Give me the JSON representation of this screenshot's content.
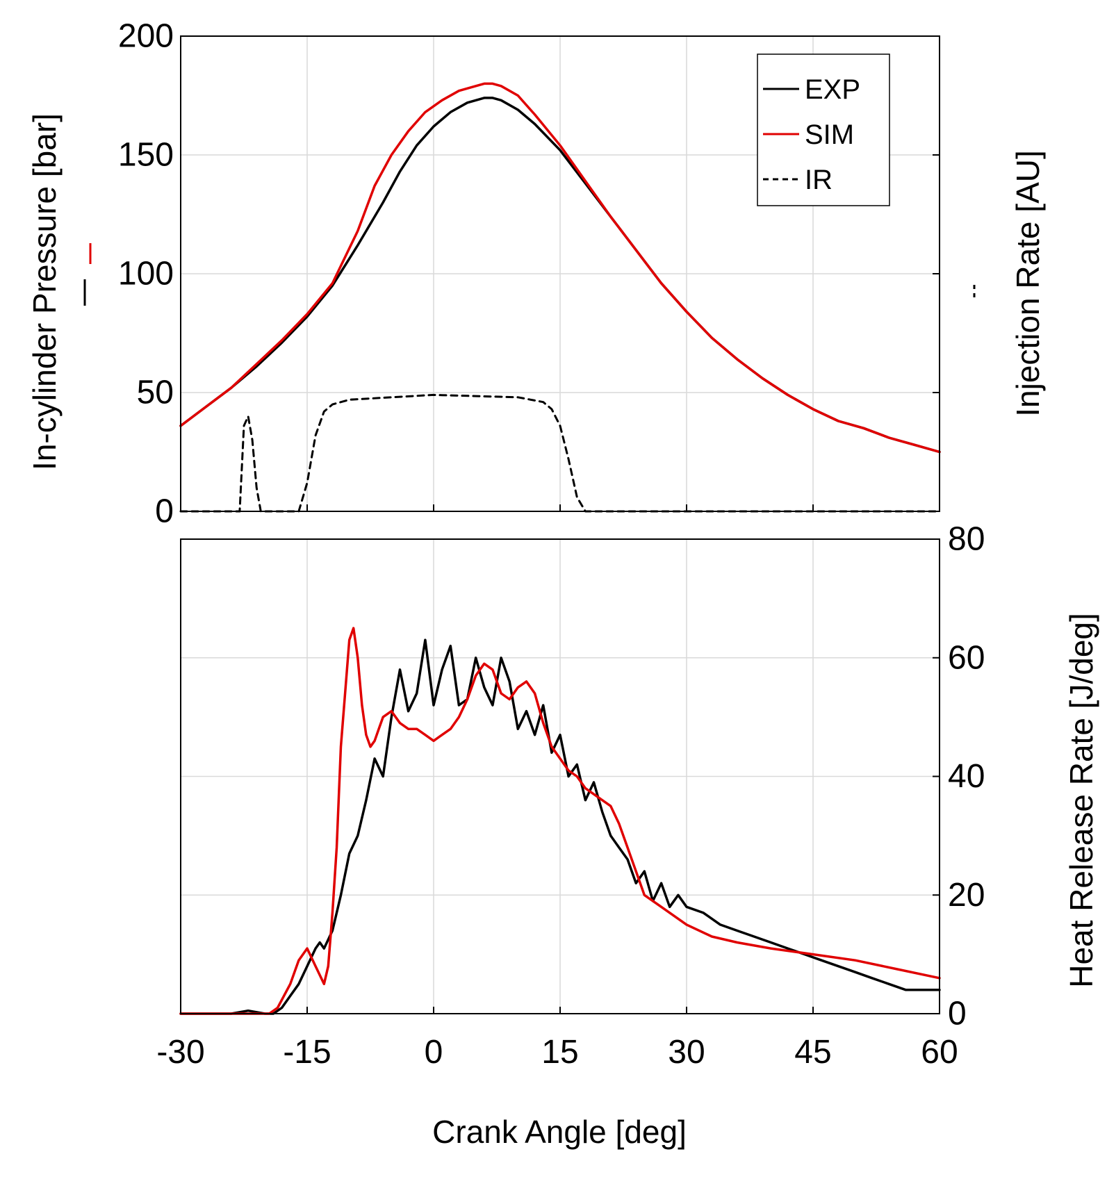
{
  "chart_data": [
    {
      "type": "line",
      "panel": "top",
      "xlabel": "",
      "ylabel_left": "In-cylinder Pressure [bar]",
      "ylabel_right": "Injection Rate [AU]",
      "xlim": [
        -30,
        60
      ],
      "ylim": [
        0,
        200
      ],
      "xticks": [
        -30,
        -15,
        0,
        15,
        30,
        45,
        60
      ],
      "yticks": [
        0,
        50,
        100,
        150,
        200
      ],
      "grid": true,
      "legend": {
        "position": "top-right",
        "entries": [
          "EXP",
          "SIM",
          "IR"
        ]
      },
      "series": [
        {
          "name": "EXP",
          "color": "#000000",
          "style": "solid",
          "x": [
            -30,
            -27,
            -24,
            -21,
            -18,
            -15,
            -12,
            -9,
            -6,
            -4,
            -2,
            0,
            2,
            4,
            6,
            7,
            8,
            10,
            12,
            15,
            18,
            21,
            24,
            27,
            30,
            33,
            36,
            39,
            42,
            45,
            48,
            51,
            54,
            57,
            60
          ],
          "y": [
            36,
            44,
            52,
            61,
            71,
            82,
            95,
            112,
            130,
            143,
            154,
            162,
            168,
            172,
            174,
            174,
            173,
            169,
            163,
            152,
            138,
            124,
            110,
            96,
            84,
            73,
            64,
            56,
            49,
            43,
            38,
            35,
            31,
            28,
            25
          ]
        },
        {
          "name": "SIM",
          "color": "#e00000",
          "style": "solid",
          "x": [
            -30,
            -27,
            -24,
            -21,
            -18,
            -15,
            -12,
            -9,
            -7,
            -5,
            -3,
            -1,
            1,
            3,
            5,
            6,
            7,
            8,
            10,
            12,
            15,
            18,
            21,
            24,
            27,
            30,
            33,
            36,
            39,
            42,
            45,
            48,
            51,
            54,
            57,
            60
          ],
          "y": [
            36,
            44,
            52,
            62,
            72,
            83,
            96,
            118,
            137,
            150,
            160,
            168,
            173,
            177,
            179,
            180,
            180,
            179,
            175,
            167,
            154,
            139,
            124,
            110,
            96,
            84,
            73,
            64,
            56,
            49,
            43,
            38,
            35,
            31,
            28,
            25
          ]
        },
        {
          "name": "IR",
          "color": "#000000",
          "style": "dashed",
          "x": [
            -30,
            -23,
            -22.5,
            -22,
            -21.5,
            -21,
            -20.5,
            -16,
            -15,
            -14,
            -13,
            -12,
            -10,
            -5,
            0,
            5,
            10,
            13,
            14,
            15,
            16,
            17,
            18,
            60
          ],
          "y": [
            0,
            0,
            36,
            40,
            30,
            10,
            0,
            0,
            12,
            32,
            42,
            45,
            47,
            48,
            49,
            48.5,
            48,
            46,
            43,
            36,
            22,
            6,
            0,
            0
          ]
        }
      ]
    },
    {
      "type": "line",
      "panel": "bottom",
      "xlabel": "Crank Angle [deg]",
      "ylabel_left": "",
      "ylabel_right": "Heat Release Rate [J/deg]",
      "xlim": [
        -30,
        60
      ],
      "ylim": [
        0,
        80
      ],
      "xticks": [
        -30,
        -15,
        0,
        15,
        30,
        45,
        60
      ],
      "yticks": [
        0,
        20,
        40,
        60,
        80
      ],
      "grid": true,
      "series": [
        {
          "name": "EXP",
          "color": "#000000",
          "style": "solid",
          "x": [
            -30,
            -24,
            -22,
            -20,
            -19,
            -18,
            -17,
            -16,
            -15,
            -14,
            -13.5,
            -13,
            -12,
            -11,
            -10,
            -9,
            -8,
            -7,
            -6,
            -5,
            -4,
            -3,
            -2,
            -1,
            0,
            1,
            2,
            3,
            4,
            5,
            6,
            7,
            8,
            9,
            10,
            11,
            12,
            13,
            14,
            15,
            16,
            17,
            18,
            19,
            20,
            21,
            22,
            23,
            24,
            25,
            26,
            27,
            28,
            29,
            30,
            32,
            34,
            36,
            38,
            40,
            42,
            44,
            46,
            48,
            50,
            52,
            54,
            56,
            58,
            60
          ],
          "y": [
            0,
            0,
            0.5,
            0,
            0,
            1,
            3,
            5,
            8,
            11,
            12,
            11,
            14,
            20,
            27,
            30,
            36,
            43,
            40,
            50,
            58,
            51,
            54,
            63,
            52,
            58,
            62,
            52,
            53,
            60,
            55,
            52,
            60,
            56,
            48,
            51,
            47,
            52,
            44,
            47,
            40,
            42,
            36,
            39,
            34,
            30,
            28,
            26,
            22,
            24,
            19,
            22,
            18,
            20,
            18,
            17,
            15,
            14,
            13,
            12,
            11,
            10,
            9,
            8,
            7,
            6,
            5,
            4,
            4,
            4
          ]
        },
        {
          "name": "SIM",
          "color": "#e00000",
          "style": "solid",
          "x": [
            -30,
            -20,
            -19.5,
            -18.5,
            -17,
            -16,
            -15,
            -14,
            -13,
            -12.5,
            -12,
            -11.5,
            -11,
            -10,
            -9.5,
            -9,
            -8.5,
            -8,
            -7.5,
            -7,
            -6.5,
            -6,
            -5,
            -4,
            -3,
            -2,
            -1,
            0,
            1,
            2,
            3,
            4,
            5,
            6,
            7,
            8,
            9,
            10,
            11,
            12,
            13,
            14,
            15,
            16,
            17,
            18,
            19,
            20,
            21,
            22,
            23,
            24,
            25,
            27,
            30,
            33,
            36,
            40,
            45,
            50,
            55,
            60
          ],
          "y": [
            0,
            0,
            0,
            1,
            5,
            9,
            11,
            8,
            5,
            8,
            17,
            28,
            45,
            63,
            65,
            60,
            52,
            47,
            45,
            46,
            48,
            50,
            51,
            49,
            48,
            48,
            47,
            46,
            47,
            48,
            50,
            53,
            57,
            59,
            58,
            54,
            53,
            55,
            56,
            54,
            49,
            45,
            43,
            41,
            40,
            38,
            37,
            36,
            35,
            32,
            28,
            24,
            20,
            18,
            15,
            13,
            12,
            11,
            10,
            9,
            7.5,
            6
          ]
        }
      ]
    }
  ]
}
